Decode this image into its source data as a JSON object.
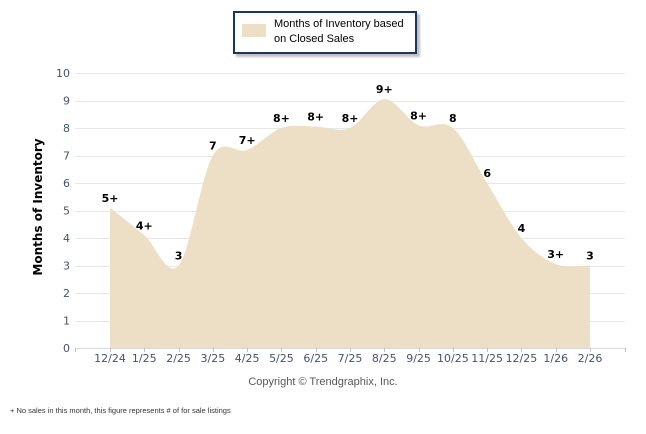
{
  "legend": {
    "label": "Months of Inventory based on Closed Sales",
    "swatch_color": "#ECDFC5"
  },
  "chart_data": {
    "type": "area",
    "title": "",
    "xlabel": "",
    "ylabel": "Months of Inventory",
    "ylim": [
      0,
      10
    ],
    "y_tick_step": 1,
    "grid": true,
    "legend_position": "top-center",
    "series_name": "Months of Inventory based on Closed Sales",
    "categories": [
      "12/24",
      "1/25",
      "2/25",
      "3/25",
      "4/25",
      "5/25",
      "6/25",
      "7/25",
      "8/25",
      "9/25",
      "10/25",
      "11/25",
      "12/25",
      "1/26",
      "2/26"
    ],
    "values": [
      5.1,
      4.1,
      3.0,
      7.0,
      7.2,
      8.0,
      8.05,
      8.0,
      9.05,
      8.1,
      8.0,
      6.0,
      4.0,
      3.05,
      3.0
    ],
    "point_labels": [
      "5+",
      "4+",
      "3",
      "7",
      "7+",
      "8+",
      "8+",
      "8+",
      "9+",
      "8+",
      "8",
      "6",
      "4",
      "3+",
      "3"
    ],
    "fill_color": "#ECDFC5"
  },
  "footer": {
    "copyright": "Copyright © Trendgraphix, Inc.",
    "footnote": "+ No sales in this month, this figure represents # of for sale listings"
  },
  "colors": {
    "area_fill": "#ECDFC5",
    "legend_border": "#17375E",
    "gridline": "#E7E7E7",
    "baseline": "#D9D9D9",
    "tick_mark": "#BFBFBF",
    "axis_text": "#44546A",
    "label_text": "#000000"
  }
}
